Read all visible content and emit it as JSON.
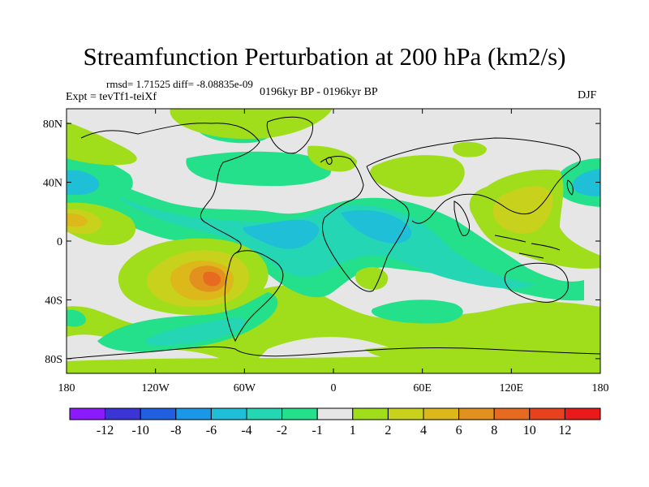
{
  "title": "Streamfunction Perturbation at 200 hPa (km2/s)",
  "stats": "rmsd= 1.71525 diff= -8.08835e-09",
  "experiment": "Expt = tevTf1-teiXf",
  "period": "0196kyr BP - 0196kyr BP",
  "season": "DJF",
  "chart_data": {
    "type": "heatmap",
    "title": "Streamfunction Perturbation at 200 hPa (km2/s)",
    "x_axis": {
      "range": [
        -180,
        180
      ],
      "ticks": [
        -180,
        -120,
        -60,
        0,
        60,
        120,
        180
      ],
      "tick_labels": [
        "180",
        "120W",
        "60W",
        "0",
        "60E",
        "120E",
        "180"
      ]
    },
    "y_axis": {
      "range": [
        -90,
        90
      ],
      "ticks": [
        80,
        40,
        0,
        -40,
        -80
      ],
      "tick_labels": [
        "80N",
        "40N",
        "0",
        "40S",
        "80S"
      ]
    },
    "colorbar": {
      "boundaries": [
        "-12",
        "-10",
        "-8",
        "-6",
        "-4",
        "-2",
        "-1",
        "1",
        "2",
        "4",
        "6",
        "8",
        "10",
        "12"
      ],
      "colors": [
        "#8c1aff",
        "#3c35d6",
        "#1f5fe0",
        "#1a97e6",
        "#1fbfd7",
        "#25d6b4",
        "#24e08a",
        "#e6e6e6",
        "#a0dd1a",
        "#c8d21c",
        "#ddb81a",
        "#e2901e",
        "#e66a1f",
        "#e8411e",
        "#ea1a1a"
      ]
    },
    "features": [
      {
        "label": "negative",
        "lon": -170,
        "lat": 37,
        "value": -4
      },
      {
        "label": "negative",
        "lon": 170,
        "lat": 35,
        "value": -4
      },
      {
        "label": "negative",
        "lon": -20,
        "lat": -5,
        "value": -2
      },
      {
        "label": "negative",
        "lon": 30,
        "lat": 15,
        "value": -2
      },
      {
        "label": "negative",
        "lon": 60,
        "lat": -20,
        "value": -2
      },
      {
        "label": "negative",
        "lon": -90,
        "lat": -60,
        "value": -2
      },
      {
        "label": "positive",
        "lon": -80,
        "lat": -25,
        "value": 8
      },
      {
        "label": "positive",
        "lon": -165,
        "lat": 15,
        "value": 4
      },
      {
        "label": "positive",
        "lon": 140,
        "lat": 25,
        "value": 4
      },
      {
        "label": "positive",
        "lon": 55,
        "lat": 45,
        "value": 2
      },
      {
        "label": "positive",
        "lon": 90,
        "lat": -70,
        "value": 2
      },
      {
        "label": "positive",
        "lon": -120,
        "lat": 65,
        "value": 2
      }
    ]
  }
}
